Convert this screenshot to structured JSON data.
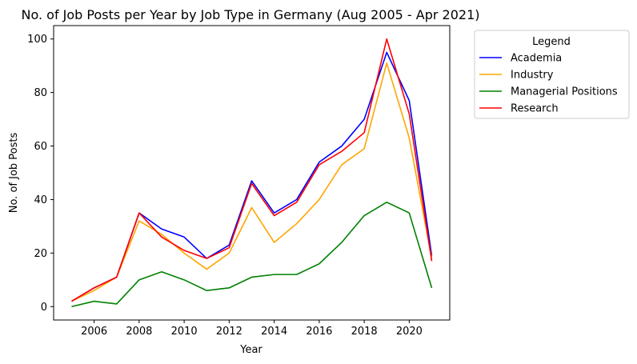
{
  "chart_data": {
    "type": "line",
    "title": "No. of Job Posts per Year by Job Type in Germany (Aug 2005 - Apr 2021)",
    "xlabel": "Year",
    "ylabel": "No. of Job Posts",
    "x": [
      2005,
      2006,
      2007,
      2008,
      2009,
      2010,
      2011,
      2012,
      2013,
      2014,
      2015,
      2016,
      2017,
      2018,
      2019,
      2020,
      2021
    ],
    "xlim": [
      2004.2,
      2021.8
    ],
    "ylim": [
      -5,
      105
    ],
    "xticks": [
      2006,
      2008,
      2010,
      2012,
      2014,
      2016,
      2018,
      2020
    ],
    "yticks": [
      0,
      20,
      40,
      60,
      80,
      100
    ],
    "grid": false,
    "legend": {
      "title": "Legend",
      "placement": "outside-right"
    },
    "series": [
      {
        "name": "Academia",
        "color": "#0000ff",
        "values": [
          2,
          7,
          11,
          35,
          29,
          26,
          18,
          23,
          47,
          35,
          40,
          54,
          60,
          70,
          95,
          77,
          19
        ]
      },
      {
        "name": "Industry",
        "color": "#ffa500",
        "values": [
          2,
          6,
          11,
          32,
          27,
          20,
          14,
          20,
          37,
          24,
          31,
          40,
          53,
          59,
          91,
          63,
          18
        ]
      },
      {
        "name": "Managerial Positions",
        "color": "#008000",
        "values": [
          0,
          2,
          1,
          10,
          13,
          10,
          6,
          7,
          11,
          12,
          12,
          16,
          24,
          34,
          39,
          35,
          7
        ]
      },
      {
        "name": "Research",
        "color": "#ff0000",
        "values": [
          2,
          7,
          11,
          35,
          26,
          21,
          18,
          22,
          46,
          34,
          39,
          53,
          58,
          65,
          100,
          72,
          17
        ]
      }
    ]
  }
}
